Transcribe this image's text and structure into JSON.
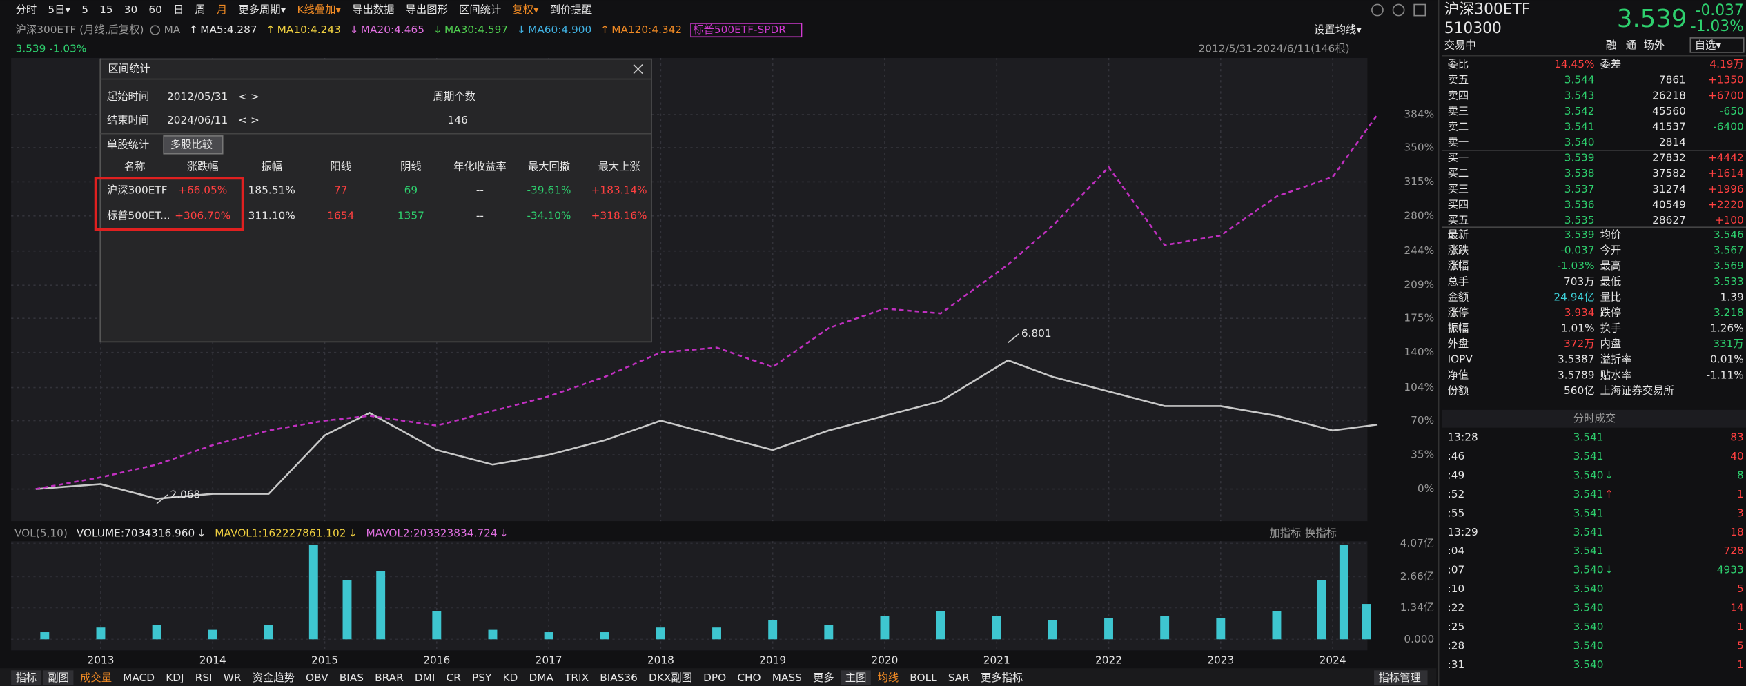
{
  "toolbar": [
    "分时",
    "5日▾",
    "5",
    "15",
    "30",
    "60",
    "日",
    "周",
    "月",
    "更多周期▾",
    "K线叠加▾",
    "导出数据",
    "导出图形",
    "区间统计",
    "复权▾",
    "到价提醒"
  ],
  "chart_header": {
    "title": "沪深300ETF (月线,后复权)",
    "ma_label": "MA",
    "mas": [
      {
        "text": "MA5:4.287",
        "arrow": "↑",
        "color": "#e6e6e6"
      },
      {
        "text": "MA10:4.243",
        "arrow": "↑",
        "color": "#f0d040"
      },
      {
        "text": "MA20:4.465",
        "arrow": "↓",
        "color": "#e070e0"
      },
      {
        "text": "MA30:4.597",
        "arrow": "↓",
        "color": "#50d050"
      },
      {
        "text": "MA60:4.900",
        "arrow": "↓",
        "color": "#40b0e0"
      },
      {
        "text": "MA120:4.342",
        "arrow": "↑",
        "color": "#f08a24"
      }
    ],
    "overlay": "标普500ETF-SPDR",
    "settings": "设置均线▾"
  },
  "quote_line": "3.539 -1.03%",
  "date_range": "2012/5/31-2024/6/11(146根)",
  "chart_data": [
    {
      "type": "line",
      "x": [
        2012.42,
        2013.0,
        2013.5,
        2014.0,
        2014.5,
        2015.0,
        2015.4,
        2016.0,
        2016.5,
        2017.0,
        2017.5,
        2018.0,
        2018.5,
        2019.0,
        2019.5,
        2020.0,
        2020.5,
        2021.1,
        2021.5,
        2022.0,
        2022.5,
        2023.0,
        2023.5,
        2024.0,
        2024.4
      ],
      "series": [
        {
          "color": "#c8c8c8",
          "values": [
            0,
            5,
            -10,
            -5,
            -5,
            55,
            78,
            40,
            25,
            35,
            50,
            70,
            55,
            40,
            60,
            75,
            90,
            132,
            115,
            100,
            85,
            85,
            75,
            60,
            66
          ]
        },
        {
          "color": "#c030c0",
          "values": [
            0,
            12,
            25,
            45,
            60,
            70,
            75,
            65,
            80,
            95,
            115,
            140,
            145,
            125,
            165,
            185,
            180,
            230,
            270,
            330,
            250,
            260,
            300,
            320,
            384
          ]
        }
      ],
      "xlim": [
        2012.2,
        2024.31
      ],
      "ylim": [
        -33,
        442
      ],
      "xticks": [
        2013,
        2014,
        2015,
        2016,
        2017,
        2018,
        2019,
        2020,
        2021,
        2022,
        2023,
        2024
      ],
      "yticks": [
        {
          "value": 384,
          "label": "384%"
        },
        {
          "value": 350,
          "label": "350%"
        },
        {
          "value": 315,
          "label": "315%"
        },
        {
          "value": 280,
          "label": "280%"
        },
        {
          "value": 244,
          "label": "244%"
        },
        {
          "value": 209,
          "label": "209%"
        },
        {
          "value": 175,
          "label": "175%"
        },
        {
          "value": 140,
          "label": "140%"
        },
        {
          "value": 104,
          "label": "104%"
        },
        {
          "value": 70,
          "label": "70%"
        },
        {
          "value": 35,
          "label": "35%"
        },
        {
          "value": 0,
          "label": "0%"
        }
      ],
      "grid": true,
      "annotations": [
        {
          "text": "6.801",
          "x": 2021.1,
          "y": 150
        },
        {
          "text": "2.068",
          "x": 2013.5,
          "y": -15
        }
      ]
    },
    {
      "type": "bar",
      "x": [
        2012.5,
        2013.0,
        2013.5,
        2014.0,
        2014.5,
        2014.9,
        2015.2,
        2015.5,
        2016.0,
        2016.5,
        2017.0,
        2017.5,
        2018.0,
        2018.5,
        2019.0,
        2019.5,
        2020.0,
        2020.5,
        2021.0,
        2021.5,
        2022.0,
        2022.5,
        2023.0,
        2023.5,
        2023.9,
        2024.1,
        2024.3
      ],
      "values": [
        0.3,
        0.5,
        0.6,
        0.4,
        0.6,
        4.0,
        2.5,
        2.9,
        1.2,
        0.4,
        0.3,
        0.3,
        0.5,
        0.5,
        0.8,
        0.6,
        1.0,
        1.2,
        1.0,
        0.8,
        0.9,
        1.0,
        0.9,
        1.2,
        2.5,
        4.0,
        1.5
      ],
      "color": "#3ec6d0",
      "ylim": [
        -0.47,
        4.16
      ],
      "yticks": [
        {
          "value": 4.07,
          "label": "4.07亿"
        },
        {
          "value": 2.66,
          "label": "2.66亿"
        },
        {
          "value": 1.34,
          "label": "1.34亿"
        },
        {
          "value": 0,
          "label": "0.000"
        }
      ]
    }
  ],
  "volume_header": {
    "name": "VOL(5,10)",
    "items": [
      {
        "text": "VOLUME:7034316.960",
        "arrow": "↓",
        "color": "#e6e6e6"
      },
      {
        "text": "MAVOL1:162227861.102",
        "arrow": "↓",
        "color": "#f0d040"
      },
      {
        "text": "MAVOL2:203323834.724",
        "arrow": "↓",
        "color": "#e070e0"
      }
    ],
    "add": "加指标",
    "switch": "换指标"
  },
  "dialog": {
    "title": "区间统计",
    "start_label": "起始时间",
    "start": "2012/05/31",
    "start_nav": "< >",
    "end_label": "结束时间",
    "end": "2024/06/11",
    "end_nav": "< >",
    "count_label": "周期个数",
    "count": "146",
    "tabs": [
      "单股统计",
      "多股比较"
    ],
    "headers": [
      "名称",
      "涨跌幅",
      "振幅",
      "阳线",
      "阴线",
      "年化收益率",
      "最大回撤",
      "最大上涨"
    ],
    "rows": [
      [
        "沪深300ETF",
        "+66.05%",
        "185.51%",
        "77",
        "69",
        "--",
        "-39.61%",
        "+183.14%"
      ],
      [
        "标普500ET...",
        "+306.70%",
        "311.10%",
        "1654",
        "1357",
        "--",
        "-34.10%",
        "+318.16%"
      ]
    ]
  },
  "bottom_tabs": [
    "指标",
    "副图",
    "成交量",
    "MACD",
    "KDJ",
    "RSI",
    "WR",
    "资金趋势",
    "OBV",
    "BIAS",
    "BRAR",
    "DMI",
    "CR",
    "PSY",
    "KD",
    "DMA",
    "TRIX",
    "BIAS36",
    "DKX副图",
    "DPO",
    "CHO",
    "MASS",
    "更多",
    "主图",
    "均线",
    "BOLL",
    "SAR",
    "更多指标"
  ],
  "bottom_right": "指标管理",
  "quote_panel": {
    "name": "沪深300ETF",
    "code": "510300",
    "price": "3.539",
    "change": "-0.037",
    "pct": "-1.03%",
    "status": "交易中",
    "tags": [
      "融",
      "通",
      "场外"
    ],
    "watch": "自选▾",
    "ratio": {
      "label": "委比",
      "value": "14.45%",
      "label2": "委差",
      "value2": "4.19万"
    },
    "book": [
      [
        "卖五",
        "3.544",
        "7861",
        "+1350"
      ],
      [
        "卖四",
        "3.543",
        "26218",
        "+6700"
      ],
      [
        "卖三",
        "3.542",
        "45560",
        "-650"
      ],
      [
        "卖二",
        "3.541",
        "41537",
        "-6400"
      ],
      [
        "卖一",
        "3.540",
        "2814",
        ""
      ],
      [
        "买一",
        "3.539",
        "27832",
        "+4442"
      ],
      [
        "买二",
        "3.538",
        "37582",
        "+1614"
      ],
      [
        "买三",
        "3.537",
        "31274",
        "+1996"
      ],
      [
        "买四",
        "3.536",
        "40549",
        "+2220"
      ],
      [
        "买五",
        "3.535",
        "28627",
        "+100"
      ]
    ],
    "stats": [
      {
        "l1": "最新",
        "v1": "3.539",
        "c1": "g",
        "l2": "均价",
        "v2": "3.546",
        "c2": "g"
      },
      {
        "l1": "涨跌",
        "v1": "-0.037",
        "c1": "g",
        "l2": "今开",
        "v2": "3.567",
        "c2": "g"
      },
      {
        "l1": "涨幅",
        "v1": "-1.03%",
        "c1": "g",
        "l2": "最高",
        "v2": "3.569",
        "c2": "g"
      },
      {
        "l1": "总手",
        "v1": "703万",
        "c1": "w",
        "l2": "最低",
        "v2": "3.533",
        "c2": "g"
      },
      {
        "l1": "金额",
        "v1": "24.94亿",
        "c1": "c",
        "l2": "量比",
        "v2": "1.39",
        "c2": "w"
      },
      {
        "l1": "涨停",
        "v1": "3.934",
        "c1": "r",
        "l2": "跌停",
        "v2": "3.218",
        "c2": "g"
      },
      {
        "l1": "振幅",
        "v1": "1.01%",
        "c1": "w",
        "l2": "换手",
        "v2": "1.26%",
        "c2": "w"
      },
      {
        "l1": "外盘",
        "v1": "372万",
        "c1": "r",
        "l2": "内盘",
        "v2": "331万",
        "c2": "g"
      },
      {
        "l1": "IOPV",
        "v1": "3.5387",
        "c1": "w",
        "l2": "溢折率",
        "v2": "0.01%",
        "c2": "w"
      },
      {
        "l1": "净值",
        "v1": "3.5789",
        "c1": "w",
        "l2": "贴水率",
        "v2": "-1.11%",
        "c2": "w"
      },
      {
        "l1": "份额",
        "v1": "560亿",
        "c1": "w",
        "l2": "上海证券交易所",
        "v2": "",
        "c2": "w"
      }
    ],
    "trades_title": "分时成交",
    "trades": [
      {
        "time": "13:28",
        "price": "3.541",
        "arrow": "",
        "vol": "83",
        "side": "r"
      },
      {
        "time": ":46",
        "price": "3.541",
        "arrow": "",
        "vol": "40",
        "side": "r"
      },
      {
        "time": ":49",
        "price": "3.540",
        "arrow": "↓",
        "vol": "8",
        "side": "g"
      },
      {
        "time": ":52",
        "price": "3.541",
        "arrow": "↑",
        "vol": "1",
        "side": "r"
      },
      {
        "time": ":55",
        "price": "3.541",
        "arrow": "",
        "vol": "3",
        "side": "r"
      },
      {
        "time": "13:29",
        "price": "3.541",
        "arrow": "",
        "vol": "18",
        "side": "r"
      },
      {
        "time": ":04",
        "price": "3.541",
        "arrow": "",
        "vol": "728",
        "side": "r"
      },
      {
        "time": ":07",
        "price": "3.540",
        "arrow": "↓",
        "vol": "4933",
        "side": "g"
      },
      {
        "time": ":10",
        "price": "3.540",
        "arrow": "",
        "vol": "5",
        "side": "r"
      },
      {
        "time": ":22",
        "price": "3.540",
        "arrow": "",
        "vol": "14",
        "side": "r"
      },
      {
        "time": ":25",
        "price": "3.540",
        "arrow": "",
        "vol": "1",
        "side": "r"
      },
      {
        "time": ":28",
        "price": "3.540",
        "arrow": "",
        "vol": "5",
        "side": "r"
      },
      {
        "time": ":31",
        "price": "3.540",
        "arrow": "",
        "vol": "1",
        "side": "r"
      }
    ]
  }
}
